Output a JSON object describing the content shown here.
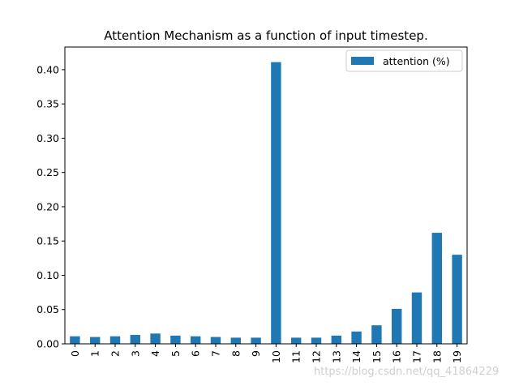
{
  "chart_data": {
    "type": "bar",
    "title": "Attention Mechanism as a function of input timestep.",
    "xlabel": "",
    "ylabel": "",
    "categories": [
      "0",
      "1",
      "2",
      "3",
      "4",
      "5",
      "6",
      "7",
      "8",
      "9",
      "10",
      "11",
      "12",
      "13",
      "14",
      "15",
      "16",
      "17",
      "18",
      "19"
    ],
    "series": [
      {
        "name": "attention (%)",
        "color": "#1f77b4",
        "values": [
          0.011,
          0.01,
          0.011,
          0.013,
          0.015,
          0.012,
          0.011,
          0.01,
          0.009,
          0.009,
          0.411,
          0.009,
          0.009,
          0.012,
          0.018,
          0.027,
          0.051,
          0.075,
          0.162,
          0.13
        ]
      }
    ],
    "ylim": [
      0,
      0.433
    ],
    "yticks": [
      "0.00",
      "0.05",
      "0.10",
      "0.15",
      "0.20",
      "0.25",
      "0.30",
      "0.35",
      "0.40"
    ],
    "grid": false,
    "legend_position": "top-right"
  },
  "watermark": "https://blog.csdn.net/qq_41864229"
}
